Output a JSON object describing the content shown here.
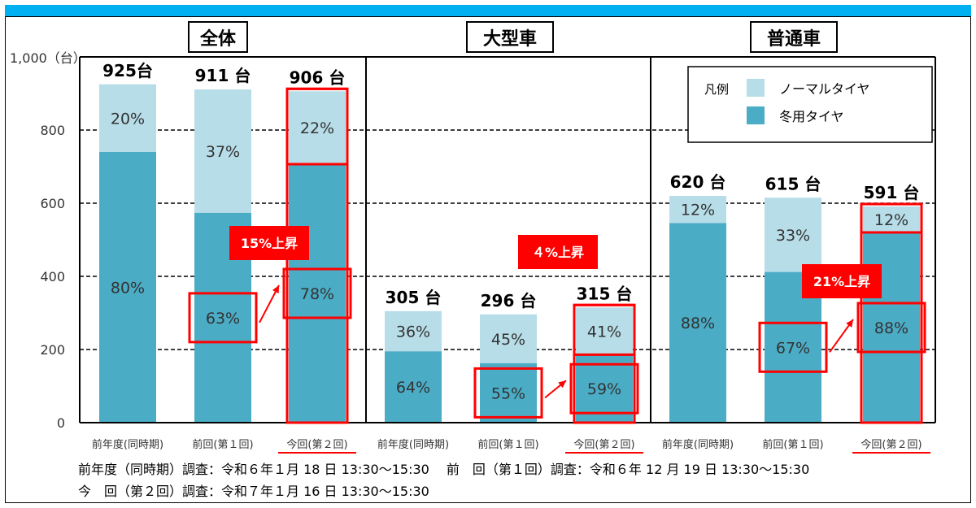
{
  "chart_data": {
    "type": "bar",
    "stacked": true,
    "y_unit_label": "1,000（台）",
    "yticks": [
      "0",
      "200",
      "400",
      "600",
      "800"
    ],
    "ylim": [
      0,
      1000
    ],
    "grid": "dashed horizontal at 200, 400, 600, 800",
    "panels": [
      {
        "title": "全体",
        "categories": [
          "前年度(同時期)",
          "前回(第１回)",
          "今回(第２回)"
        ],
        "totals": [
          925,
          911,
          906
        ],
        "total_labels": [
          "925台",
          "911 台",
          "906 台"
        ],
        "series": [
          {
            "name": "冬用タイヤ",
            "pct_labels": [
              "80%",
              "63%",
              "78%"
            ],
            "pct": [
              80,
              63,
              78
            ]
          },
          {
            "name": "ノーマルタイヤ",
            "pct_labels": [
              "20%",
              "37%",
              "22%"
            ],
            "pct": [
              20,
              37,
              22
            ]
          }
        ],
        "callout": "15%上昇"
      },
      {
        "title": "大型車",
        "categories": [
          "前年度(同時期)",
          "前回(第１回)",
          "今回(第２回)"
        ],
        "totals": [
          305,
          296,
          315
        ],
        "total_labels": [
          "305 台",
          "296 台",
          "315 台"
        ],
        "series": [
          {
            "name": "冬用タイヤ",
            "pct_labels": [
              "64%",
              "55%",
              "59%"
            ],
            "pct": [
              64,
              55,
              59
            ]
          },
          {
            "name": "ノーマルタイヤ",
            "pct_labels": [
              "36%",
              "45%",
              "41%"
            ],
            "pct": [
              36,
              45,
              41
            ]
          }
        ],
        "callout": "４%上昇"
      },
      {
        "title": "普通車",
        "categories": [
          "前年度(同時期)",
          "前回(第１回)",
          "今回(第２回)"
        ],
        "totals": [
          620,
          615,
          591
        ],
        "total_labels": [
          "620 台",
          "615 台",
          "591 台"
        ],
        "series": [
          {
            "name": "冬用タイヤ",
            "pct_labels": [
              "88%",
              "67%",
              "88%"
            ],
            "pct": [
              88,
              67,
              88
            ]
          },
          {
            "name": "ノーマルタイヤ",
            "pct_labels": [
              "12%",
              "33%",
              "12%"
            ],
            "pct": [
              12,
              33,
              12
            ]
          }
        ],
        "callout": "21%上昇"
      }
    ],
    "legend": {
      "title": "凡例",
      "placement": "top-right",
      "items": [
        {
          "label": "ノーマルタイヤ",
          "color": "#b7dde8"
        },
        {
          "label": "冬用タイヤ",
          "color": "#4bacc6"
        }
      ]
    },
    "colors": {
      "winter": "#4bacc6",
      "normal": "#b7dde8",
      "highlight": "#ff0000",
      "header_band": "#00b0f0"
    },
    "footnotes": [
      "前年度（同時期）調査：令和６年１月 18 日 13:30～15:30　 前　回（第１回）調査：令和６年 12 月 19 日 13:30～15:30",
      "今　回（第２回）調査：令和７年１月 16 日 13:30～15:30"
    ]
  }
}
